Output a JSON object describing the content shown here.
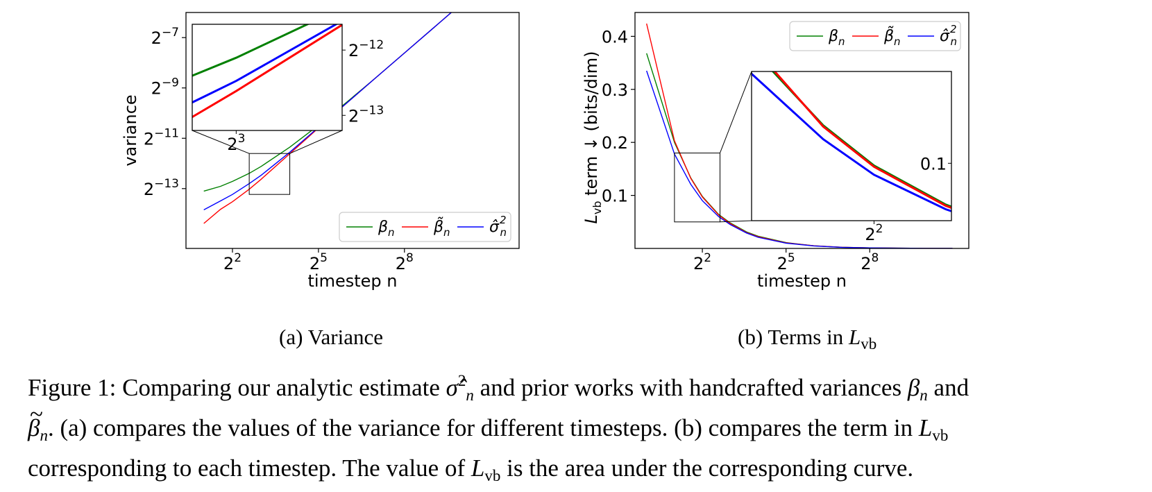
{
  "subcaptions": {
    "a": "(a) Variance",
    "b_prefix": "(b) Terms in ",
    "b_symbol": "L",
    "b_symbol_sub": "vb"
  },
  "caption": {
    "figure_label": "Figure 1:",
    "line1_a": "Comparing our analytic estimate",
    "sigma": "σ̂",
    "n_sup": "2",
    "n_sub": "n",
    "line1_b": "and prior works with handcrafted variances",
    "beta": "β",
    "line1_c": "and",
    "line2_a": ". (a) compares the values of the variance for different timesteps. (b) compares the term in",
    "L": "L",
    "vb": "vb",
    "line3_a": "corresponding to each timestep. The value of",
    "line3_b": "is the area under the corresponding curve."
  },
  "colors": {
    "beta_n": "#008000",
    "beta_tilde_n": "#ff0000",
    "sigma_hat_n2": "#0000ff"
  },
  "chart_data": [
    {
      "type": "line",
      "xlabel": "timestep n",
      "ylabel": "variance",
      "x_scale": "log2",
      "y_scale": "log2",
      "x_ticks": [
        "2^2",
        "2^5",
        "2^8"
      ],
      "y_ticks": [
        "2^-7",
        "2^-9",
        "2^-11",
        "2^-13"
      ],
      "xlim": [
        1.3,
        4096
      ],
      "ylim": [
        2.35e-05,
        0.0156
      ],
      "legend_position": "lower-right",
      "series": [
        {
          "name": "β_n",
          "color": "#008000",
          "x": [
            2,
            3,
            4,
            6,
            8,
            16,
            32,
            64,
            128,
            256,
            512,
            1000
          ],
          "y": [
            0.000114,
            0.00013,
            0.000149,
            0.000186,
            0.000225,
            0.000382,
            0.000697,
            0.00133,
            0.00259,
            0.00511,
            0.0101,
            0.0196
          ]
        },
        {
          "name": "β̃_n",
          "color": "#ff0000",
          "x": [
            2,
            3,
            4,
            6,
            8,
            16,
            32,
            64,
            128,
            256,
            512,
            1000
          ],
          "y": [
            4.68e-05,
            6.9e-05,
            8.5e-05,
            0.00012,
            0.000158,
            0.000319,
            0.000648,
            0.0013,
            0.00259,
            0.00511,
            0.0101,
            0.0196
          ]
        },
        {
          "name": "σ̂_n^2",
          "color": "#0000ff",
          "x": [
            2,
            3,
            4,
            6,
            8,
            16,
            32,
            64,
            128,
            256,
            512,
            1000
          ],
          "y": [
            6.8e-05,
            8.7e-05,
            0.000104,
            0.00014,
            0.000176,
            0.000333,
            0.00066,
            0.0013,
            0.00259,
            0.00511,
            0.0101,
            0.0196
          ]
        }
      ],
      "inset": {
        "x_ticks": [
          "2^3"
        ],
        "y_ticks": [
          "2^-12",
          "2^-13"
        ],
        "xlim": [
          6,
          16
        ],
        "ylim": [
          0.000104,
          0.000321
        ]
      }
    },
    {
      "type": "line",
      "xlabel": "timestep n",
      "ylabel_symbol": "L",
      "ylabel_sub": "vb",
      "ylabel_rest": " term ↓ (bits/dim)",
      "x_scale": "log2",
      "y_scale": "linear",
      "x_ticks": [
        "2^2",
        "2^5",
        "2^8"
      ],
      "y_ticks": [
        "0.1",
        "0.2",
        "0.3",
        "0.4"
      ],
      "xlim": [
        0.75,
        3000
      ],
      "ylim": [
        0,
        0.445
      ],
      "legend_position": "upper-right",
      "series": [
        {
          "name": "β_n",
          "color": "#008000",
          "x": [
            1,
            2,
            3,
            4,
            6,
            8,
            12,
            16,
            32,
            64,
            128,
            256,
            512,
            1000,
            2000
          ],
          "y": [
            0.368,
            0.2,
            0.133,
            0.098,
            0.064,
            0.048,
            0.031,
            0.023,
            0.011,
            0.005,
            0.0022,
            0.001,
            0.0005,
            0.0003,
            0.0002
          ]
        },
        {
          "name": "β̃_n",
          "color": "#ff0000",
          "x": [
            1,
            2,
            3,
            4,
            6,
            8,
            12,
            16,
            32,
            64,
            128,
            256,
            512,
            1000,
            2000
          ],
          "y": [
            0.424,
            0.203,
            0.132,
            0.097,
            0.063,
            0.047,
            0.03,
            0.022,
            0.0105,
            0.005,
            0.0022,
            0.001,
            0.0005,
            0.0003,
            0.0002
          ]
        },
        {
          "name": "σ̂_n^2",
          "color": "#0000ff",
          "x": [
            1,
            2,
            3,
            4,
            6,
            8,
            12,
            16,
            32,
            64,
            128,
            256,
            512,
            1000,
            2000
          ],
          "y": [
            0.335,
            0.178,
            0.121,
            0.09,
            0.06,
            0.045,
            0.029,
            0.021,
            0.01,
            0.0047,
            0.0021,
            0.001,
            0.0005,
            0.0003,
            0.0002
          ]
        }
      ],
      "inset": {
        "y_ticks": [
          "0.1"
        ],
        "x_ticks": [
          "2^2"
        ],
        "xlim": [
          2,
          6.2
        ],
        "ylim": [
          0.05,
          0.18
        ]
      }
    }
  ]
}
